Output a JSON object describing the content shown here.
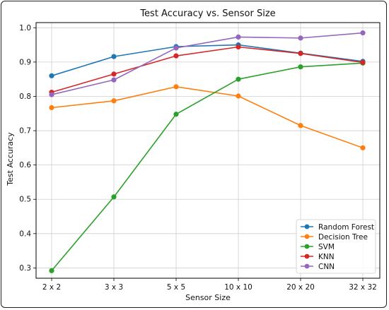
{
  "chart_data": {
    "type": "line",
    "title": "Test Accuracy vs. Sensor Size",
    "xlabel": "Sensor Size",
    "ylabel": "Test Accuracy",
    "categories": [
      "2 x 2",
      "3 x 3",
      "5 x 5",
      "10 x 10",
      "20 x 20",
      "32 x 32"
    ],
    "ylim": [
      0.27,
      1.015
    ],
    "yticks": [
      "0.3",
      "0.4",
      "0.5",
      "0.6",
      "0.7",
      "0.8",
      "0.9",
      "1.0"
    ],
    "grid": true,
    "legend_position": "bottom-right",
    "series": [
      {
        "name": "Random Forest",
        "color": "#1f77b4",
        "values": [
          0.86,
          0.916,
          0.945,
          0.95,
          0.926,
          0.902
        ]
      },
      {
        "name": "Decision Tree",
        "color": "#ff7f0e",
        "values": [
          0.767,
          0.787,
          0.828,
          0.801,
          0.715,
          0.65
        ]
      },
      {
        "name": "SVM",
        "color": "#2ca02c",
        "values": [
          0.292,
          0.507,
          0.748,
          0.85,
          0.886,
          0.897
        ]
      },
      {
        "name": "KNN",
        "color": "#d62728",
        "values": [
          0.812,
          0.865,
          0.918,
          0.944,
          0.925,
          0.899
        ]
      },
      {
        "name": "CNN",
        "color": "#9467bd",
        "values": [
          0.805,
          0.848,
          0.941,
          0.973,
          0.97,
          0.985
        ]
      }
    ]
  }
}
